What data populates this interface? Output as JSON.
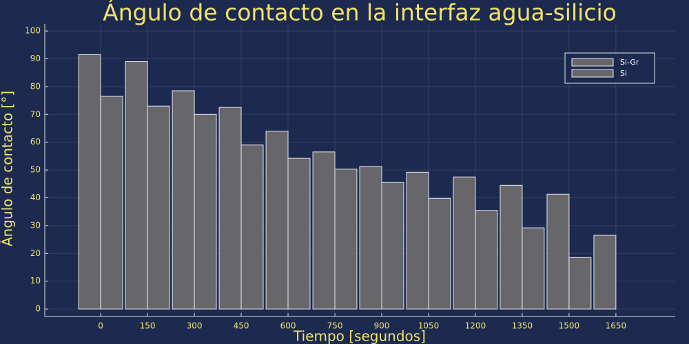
{
  "chart_data": {
    "type": "bar",
    "title": "Ángulo de contacto en la interfaz agua-silicio",
    "x_label": "Tiempo [segundos]",
    "y_label": "Ángulo de contacto [°]",
    "x": [
      0,
      150,
      300,
      450,
      600,
      750,
      900,
      1050,
      1200,
      1350,
      1500,
      1650
    ],
    "series": [
      {
        "name": "Si-Gr",
        "color": "#67676b",
        "values": [
          91.5,
          89,
          78.5,
          72.5,
          64,
          56.5,
          51.3,
          49.2,
          47.5,
          44.5,
          41.3,
          26.5
        ]
      },
      {
        "name": "Si",
        "color": "#67676b",
        "values": [
          76.5,
          73,
          70,
          59,
          54.2,
          50.3,
          45.5,
          39.8,
          35.5,
          29.2,
          18.5,
          0
        ]
      }
    ],
    "xlim": [
      -179,
      1840
    ],
    "xticks": [
      0,
      150,
      300,
      450,
      600,
      750,
      900,
      1050,
      1200,
      1350,
      1500,
      1650
    ],
    "ylim": [
      -2.7,
      102.5
    ],
    "yticks": [
      0,
      10,
      20,
      30,
      40,
      50,
      60,
      70,
      80,
      90,
      100
    ],
    "grid": true,
    "legend": "upper right"
  }
}
